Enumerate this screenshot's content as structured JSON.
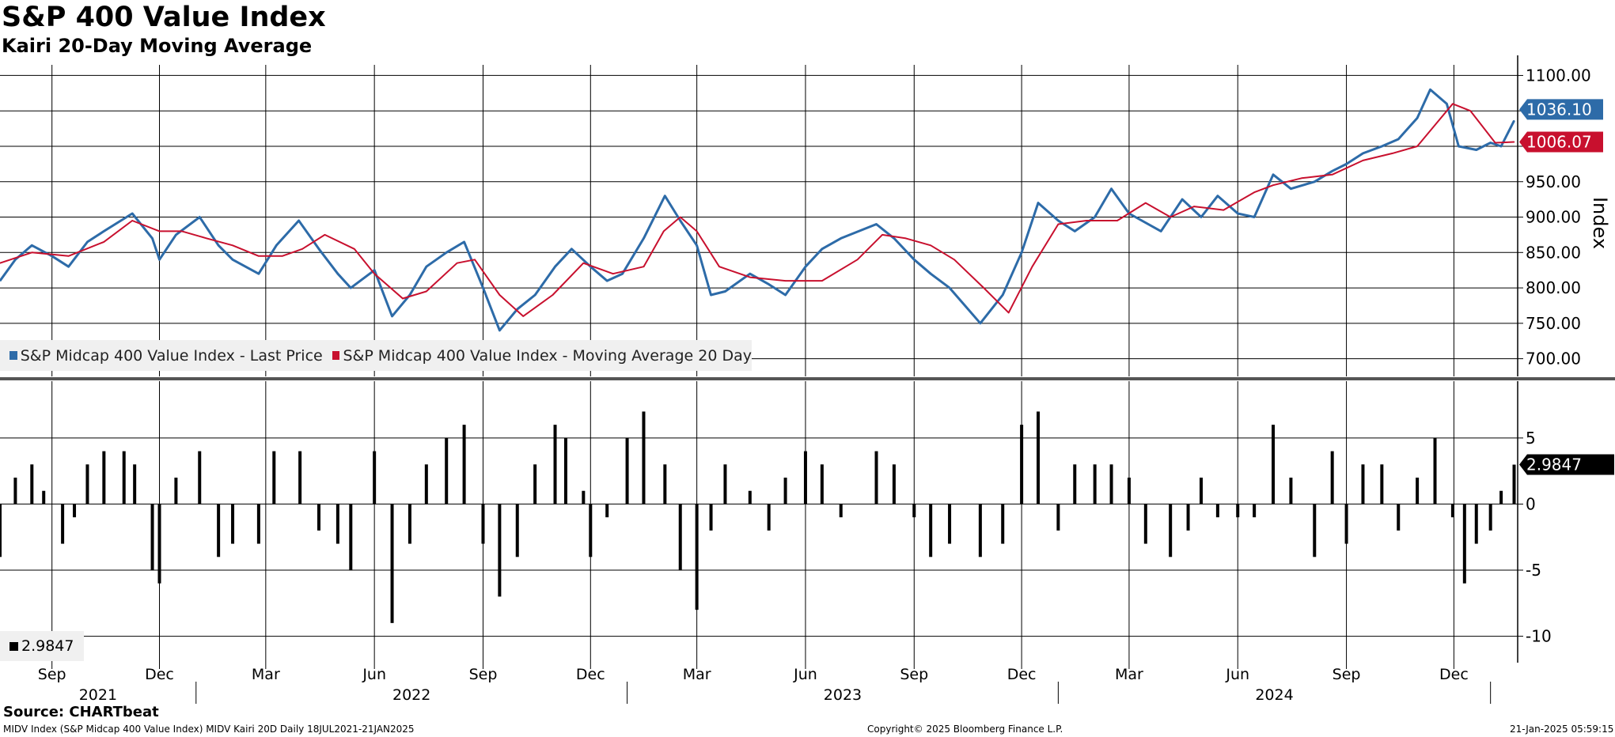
{
  "header": {
    "title": "S&P 400 Value Index",
    "subtitle": "Kairi 20-Day Moving Average"
  },
  "footer": {
    "source": "Source: CHARTbeat",
    "ticker_line": "MIDV Index (S&P Midcap 400 Value Index) MIDV Kairi 20D  Daily 18JUL2021-21JAN2025",
    "copyright": "Copyright© 2025 Bloomberg Finance L.P.",
    "timestamp": "21-Jan-2025 05:59:15"
  },
  "colors": {
    "price": "#2d6ba8",
    "ma": "#c8102e",
    "kairi": "#000000",
    "grid": "#000000"
  },
  "chart_data": [
    {
      "type": "line",
      "name": "price-panel",
      "ylabel": "Index",
      "ylim": [
        675,
        1115
      ],
      "yticks": [
        "700.00",
        "750.00",
        "800.00",
        "850.00",
        "900.00",
        "950.00",
        "1000.00",
        "1050.00",
        "1100.00"
      ],
      "ytick_values": [
        700,
        750,
        800,
        850,
        900,
        950,
        1000,
        1050,
        1100
      ],
      "legend_position": "bottom-left",
      "series": [
        {
          "name": "S&P Midcap 400 Value Index - Last Price",
          "last_label": "1036.10",
          "x": [
            "2021-07-19",
            "2021-08-01",
            "2021-08-15",
            "2021-09-01",
            "2021-09-15",
            "2021-10-01",
            "2021-10-15",
            "2021-11-08",
            "2021-11-25",
            "2021-12-01",
            "2021-12-15",
            "2022-01-04",
            "2022-01-20",
            "2022-02-01",
            "2022-02-23",
            "2022-03-10",
            "2022-03-29",
            "2022-04-15",
            "2022-05-01",
            "2022-05-12",
            "2022-06-01",
            "2022-06-16",
            "2022-07-01",
            "2022-07-15",
            "2022-08-01",
            "2022-08-16",
            "2022-09-01",
            "2022-09-15",
            "2022-09-30",
            "2022-10-15",
            "2022-11-01",
            "2022-11-15",
            "2022-12-01",
            "2022-12-15",
            "2022-12-28",
            "2023-01-15",
            "2023-02-02",
            "2023-02-15",
            "2023-03-01",
            "2023-03-13",
            "2023-03-25",
            "2023-04-15",
            "2023-05-01",
            "2023-05-15",
            "2023-06-01",
            "2023-06-15",
            "2023-07-01",
            "2023-07-31",
            "2023-08-15",
            "2023-09-01",
            "2023-09-15",
            "2023-10-01",
            "2023-10-27",
            "2023-11-15",
            "2023-12-01",
            "2023-12-15",
            "2024-01-01",
            "2024-01-15",
            "2024-02-01",
            "2024-02-15",
            "2024-03-01",
            "2024-03-28",
            "2024-04-15",
            "2024-05-01",
            "2024-05-15",
            "2024-06-01",
            "2024-06-15",
            "2024-07-01",
            "2024-07-16",
            "2024-08-05",
            "2024-08-20",
            "2024-09-01",
            "2024-09-15",
            "2024-10-01",
            "2024-10-15",
            "2024-10-31",
            "2024-11-11",
            "2024-11-25",
            "2024-12-05",
            "2024-12-20",
            "2025-01-01",
            "2025-01-10",
            "2025-01-21"
          ],
          "y": [
            810,
            840,
            860,
            845,
            830,
            865,
            880,
            905,
            870,
            840,
            875,
            900,
            860,
            840,
            820,
            860,
            895,
            855,
            820,
            800,
            825,
            760,
            790,
            830,
            850,
            865,
            800,
            740,
            770,
            790,
            830,
            855,
            830,
            810,
            820,
            870,
            930,
            895,
            860,
            790,
            795,
            820,
            805,
            790,
            830,
            855,
            870,
            890,
            870,
            840,
            820,
            800,
            750,
            790,
            850,
            920,
            895,
            880,
            900,
            940,
            905,
            880,
            925,
            900,
            930,
            905,
            900,
            960,
            940,
            950,
            965,
            975,
            990,
            1000,
            1010,
            1040,
            1080,
            1060,
            1000,
            995,
            1005,
            1000,
            1036.1
          ]
        },
        {
          "name": "S&P Midcap 400 Value Index - Moving Average 20 Day",
          "last_label": "1006.07",
          "x": [
            "2021-07-19",
            "2021-08-15",
            "2021-09-15",
            "2021-10-15",
            "2021-11-08",
            "2021-12-01",
            "2021-12-20",
            "2022-01-10",
            "2022-02-01",
            "2022-02-23",
            "2022-03-15",
            "2022-04-01",
            "2022-04-20",
            "2022-05-15",
            "2022-06-01",
            "2022-06-25",
            "2022-07-15",
            "2022-08-10",
            "2022-08-25",
            "2022-09-15",
            "2022-10-05",
            "2022-10-30",
            "2022-11-25",
            "2022-12-20",
            "2023-01-15",
            "2023-02-01",
            "2023-02-15",
            "2023-03-01",
            "2023-03-20",
            "2023-04-15",
            "2023-05-15",
            "2023-06-15",
            "2023-07-15",
            "2023-08-05",
            "2023-08-25",
            "2023-09-15",
            "2023-10-05",
            "2023-10-30",
            "2023-11-20",
            "2023-12-10",
            "2024-01-01",
            "2024-01-25",
            "2024-02-20",
            "2024-03-15",
            "2024-04-05",
            "2024-04-25",
            "2024-05-20",
            "2024-06-15",
            "2024-07-01",
            "2024-07-25",
            "2024-08-20",
            "2024-09-15",
            "2024-10-10",
            "2024-10-31",
            "2024-11-15",
            "2024-11-30",
            "2024-12-15",
            "2025-01-05",
            "2025-01-21"
          ],
          "y": [
            835,
            850,
            845,
            865,
            895,
            880,
            880,
            870,
            860,
            845,
            845,
            855,
            875,
            855,
            820,
            785,
            795,
            835,
            840,
            790,
            760,
            790,
            835,
            820,
            830,
            880,
            900,
            880,
            830,
            815,
            810,
            810,
            840,
            875,
            870,
            860,
            840,
            800,
            765,
            830,
            890,
            895,
            895,
            920,
            900,
            915,
            910,
            935,
            945,
            955,
            960,
            980,
            990,
            1000,
            1030,
            1060,
            1050,
            1005,
            1006.07
          ]
        }
      ]
    },
    {
      "type": "bar",
      "name": "kairi-panel",
      "ylim": [
        -12,
        9.3
      ],
      "yticks": [
        "5",
        "0",
        "-5",
        "-10"
      ],
      "ytick_values": [
        5,
        0,
        -5,
        -10
      ],
      "legend_position": "bottom-left",
      "series": [
        {
          "name": "MIDV Kairi 20D",
          "legend_label": "2.9847",
          "last_label": "2.9847",
          "x": [
            "2021-07-19",
            "2021-08-01",
            "2021-08-15",
            "2021-08-25",
            "2021-09-10",
            "2021-09-20",
            "2021-10-01",
            "2021-10-15",
            "2021-11-01",
            "2021-11-10",
            "2021-11-25",
            "2021-12-01",
            "2021-12-15",
            "2022-01-04",
            "2022-01-20",
            "2022-02-01",
            "2022-02-23",
            "2022-03-08",
            "2022-03-30",
            "2022-04-15",
            "2022-05-01",
            "2022-05-12",
            "2022-06-01",
            "2022-06-16",
            "2022-07-01",
            "2022-07-15",
            "2022-08-01",
            "2022-08-16",
            "2022-09-01",
            "2022-09-15",
            "2022-09-30",
            "2022-10-15",
            "2022-11-01",
            "2022-11-10",
            "2022-11-25",
            "2022-12-01",
            "2022-12-15",
            "2023-01-01",
            "2023-01-15",
            "2023-02-02",
            "2023-02-15",
            "2023-03-01",
            "2023-03-13",
            "2023-03-25",
            "2023-04-15",
            "2023-05-01",
            "2023-05-15",
            "2023-06-01",
            "2023-06-15",
            "2023-07-01",
            "2023-07-31",
            "2023-08-15",
            "2023-09-01",
            "2023-09-15",
            "2023-10-01",
            "2023-10-27",
            "2023-11-15",
            "2023-12-01",
            "2023-12-15",
            "2024-01-01",
            "2024-01-15",
            "2024-02-01",
            "2024-02-15",
            "2024-03-01",
            "2024-03-15",
            "2024-04-05",
            "2024-04-20",
            "2024-05-01",
            "2024-05-15",
            "2024-06-01",
            "2024-06-15",
            "2024-07-01",
            "2024-07-16",
            "2024-08-05",
            "2024-08-20",
            "2024-09-01",
            "2024-09-15",
            "2024-10-01",
            "2024-10-15",
            "2024-10-31",
            "2024-11-15",
            "2024-11-30",
            "2024-12-10",
            "2024-12-20",
            "2025-01-01",
            "2025-01-10",
            "2025-01-21"
          ],
          "y": [
            -4,
            2,
            3,
            1,
            -3,
            -1,
            3,
            4,
            4,
            3,
            -5,
            -6,
            2,
            4,
            -4,
            -3,
            -3,
            4,
            4,
            -2,
            -3,
            -5,
            4,
            -9,
            -3,
            3,
            5,
            6,
            -3,
            -7,
            -4,
            3,
            6,
            5,
            1,
            -4,
            -1,
            5,
            7,
            3,
            -5,
            -8,
            -2,
            3,
            1,
            -2,
            2,
            4,
            3,
            -1,
            4,
            3,
            -1,
            -4,
            -3,
            -4,
            -3,
            6,
            7,
            -2,
            3,
            3,
            3,
            2,
            -3,
            -4,
            -2,
            2,
            -1,
            -1,
            -1,
            6,
            2,
            -4,
            4,
            -3,
            3,
            3,
            -2,
            2,
            5,
            -1,
            -6,
            -3,
            -2,
            1,
            2.9847
          ]
        }
      ]
    }
  ],
  "x_axis": {
    "months": [
      {
        "label": "Sep",
        "date": "2021-09-01"
      },
      {
        "label": "Dec",
        "date": "2021-12-01"
      },
      {
        "label": "Mar",
        "date": "2022-03-01"
      },
      {
        "label": "Jun",
        "date": "2022-06-01"
      },
      {
        "label": "Sep",
        "date": "2022-09-01"
      },
      {
        "label": "Dec",
        "date": "2022-12-01"
      },
      {
        "label": "Mar",
        "date": "2023-03-01"
      },
      {
        "label": "Jun",
        "date": "2023-06-01"
      },
      {
        "label": "Sep",
        "date": "2023-09-01"
      },
      {
        "label": "Dec",
        "date": "2023-12-01"
      },
      {
        "label": "Mar",
        "date": "2024-03-01"
      },
      {
        "label": "Jun",
        "date": "2024-06-01"
      },
      {
        "label": "Sep",
        "date": "2024-09-01"
      },
      {
        "label": "Dec",
        "date": "2024-12-01"
      }
    ],
    "years": [
      {
        "label": "2021",
        "start": "2021-07-19",
        "end": "2022-01-01"
      },
      {
        "label": "2022",
        "start": "2022-01-01",
        "end": "2023-01-01"
      },
      {
        "label": "2023",
        "start": "2023-01-01",
        "end": "2024-01-01"
      },
      {
        "label": "2024",
        "start": "2024-01-01",
        "end": "2025-01-01"
      }
    ],
    "range": [
      "2021-07-19",
      "2025-01-24"
    ]
  }
}
